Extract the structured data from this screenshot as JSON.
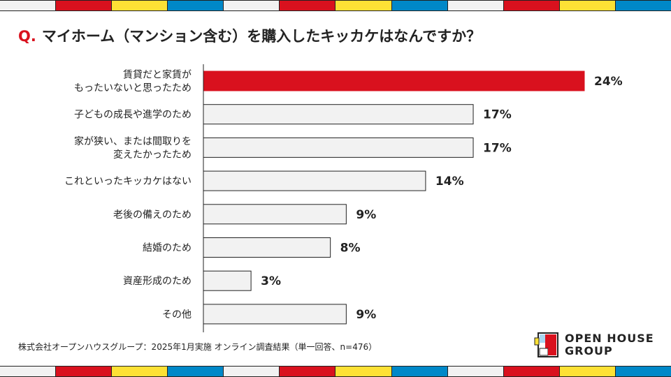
{
  "title": {
    "prefix": "Q.",
    "text": "マイホーム（マンション含む）を購入したキッカケはなんですか？"
  },
  "stripe_colors": [
    "#f2f2f2",
    "#d9111e",
    "#fde135",
    "#0088c8"
  ],
  "chart_data": {
    "type": "bar",
    "orientation": "horizontal",
    "title": "マイホーム（マンション含む）を購入したキッカケはなんですか？",
    "categories": [
      [
        "賃貸だと家賃が",
        "もったいないと思ったため"
      ],
      [
        "子どもの成長や進学のため"
      ],
      [
        "家が狭い、または間取りを",
        "変えたかったため"
      ],
      [
        "これといったキッカケはない"
      ],
      [
        "老後の備えのため"
      ],
      [
        "結婚のため"
      ],
      [
        "資産形成のため"
      ],
      [
        "その他"
      ]
    ],
    "values": [
      24,
      17,
      17,
      14,
      9,
      8,
      3,
      9
    ],
    "labels": [
      "24%",
      "17%",
      "17%",
      "14%",
      "9%",
      "8%",
      "3%",
      "9%"
    ],
    "highlight_color": "#d9111e",
    "bar_color": "#f2f2f2",
    "xlim": [
      0,
      24
    ]
  },
  "footer": "株式会社オープンハウスグループ：2025年1月実施 オンライン調査結果（単一回答、n=476）",
  "logo": {
    "line1": "OPEN HOUSE",
    "line2": "GROUP"
  }
}
